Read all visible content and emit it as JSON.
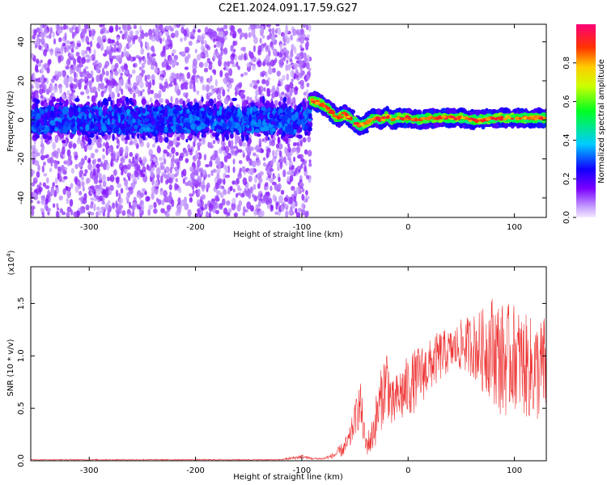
{
  "title": "C2E1.2024.091.17.59.G27",
  "chart_data": [
    {
      "type": "heatmap",
      "xlabel": "Height of straight line (km)",
      "ylabel": "Frequency (Hz)",
      "xlim": [
        -355,
        130
      ],
      "ylim": [
        -50,
        49
      ],
      "x_ticks": [
        -300,
        -200,
        -100,
        0,
        100
      ],
      "x_tick_labels": [
        "-300",
        "-200",
        "-100",
        "0",
        "100"
      ],
      "y_ticks": [
        -40,
        -20,
        0,
        20,
        40
      ],
      "y_tick_labels": [
        "-40",
        "-20",
        "0",
        "20",
        "40"
      ],
      "grid": false,
      "colorbar": {
        "label": "Normalized spectral amplitude",
        "range": [
          0,
          1
        ],
        "ticks": [
          0.0,
          0.2,
          0.4,
          0.6,
          0.8
        ],
        "tick_labels": [
          "0.0",
          "0.2",
          "0.4",
          "0.6",
          "0.8"
        ],
        "colormap": "rainbow"
      },
      "regions": [
        {
          "x_range": [
            -355,
            -92
          ],
          "center_freq_hz": 0,
          "core_halfwidth_hz": 6,
          "diffuse_extent_hz": 49,
          "max_amplitude": 0.35
        },
        {
          "x_range": [
            -92,
            130
          ],
          "center_freq_hz": 2,
          "core_halfwidth_hz": 3,
          "diffuse_extent_hz": 8,
          "max_amplitude": 0.95
        }
      ],
      "ridge": {
        "x": [
          -92,
          -85,
          -78,
          -72,
          -66,
          -60,
          -55,
          -50,
          -45,
          -40,
          -35,
          -30,
          -25,
          -20,
          -15,
          -10,
          0,
          10,
          20,
          30,
          40,
          50,
          60,
          70,
          80,
          90,
          100,
          110,
          120,
          130
        ],
        "freq": [
          10,
          9,
          7,
          4,
          1,
          3,
          1,
          -1,
          -3,
          -2,
          0,
          1,
          0,
          2,
          0,
          1,
          1,
          0,
          1,
          1,
          1,
          1,
          0,
          0,
          1,
          1,
          1,
          1,
          1,
          1
        ]
      }
    },
    {
      "type": "line",
      "xlabel": "Height of straight line (km)",
      "ylabel": "SNR (10 * v/v)",
      "y_scale_label": "(x10",
      "y_scale_exponent": "4",
      "y_scale_close": ")",
      "xlim": [
        -355,
        130
      ],
      "ylim": [
        0,
        1.85
      ],
      "x_ticks": [
        -300,
        -200,
        -100,
        0,
        100
      ],
      "x_tick_labels": [
        "-300",
        "-200",
        "-100",
        "0",
        "100"
      ],
      "y_ticks": [
        0.0,
        0.5,
        1.0,
        1.5
      ],
      "y_tick_labels": [
        "0.0",
        "0.5",
        "1.0",
        "1.5"
      ],
      "grid": false,
      "series": [
        {
          "color": "#ee3333",
          "envelope_x": [
            -355,
            -120,
            -105,
            -100,
            -90,
            -80,
            -70,
            -60,
            -55,
            -50,
            -45,
            -40,
            -35,
            -30,
            -25,
            -20,
            -15,
            -10,
            -5,
            0,
            10,
            20,
            30,
            40,
            50,
            60,
            70,
            78,
            85,
            90,
            100,
            110,
            120,
            130
          ],
          "envelope_mean": [
            0.01,
            0.01,
            0.03,
            0.04,
            0.02,
            0.02,
            0.05,
            0.12,
            0.2,
            0.4,
            0.55,
            0.15,
            0.2,
            0.4,
            0.6,
            0.8,
            0.5,
            0.6,
            0.65,
            0.7,
            0.8,
            0.9,
            1.0,
            1.05,
            1.1,
            1.1,
            1.05,
            1.1,
            1.0,
            0.95,
            1.0,
            0.9,
            0.85,
            0.9
          ],
          "envelope_spread": [
            0.005,
            0.005,
            0.02,
            0.02,
            0.01,
            0.01,
            0.03,
            0.08,
            0.12,
            0.15,
            0.25,
            0.1,
            0.15,
            0.25,
            0.3,
            0.35,
            0.25,
            0.25,
            0.3,
            0.3,
            0.3,
            0.25,
            0.25,
            0.2,
            0.25,
            0.3,
            0.4,
            0.5,
            0.55,
            0.55,
            0.5,
            0.5,
            0.5,
            0.5
          ]
        }
      ]
    }
  ]
}
